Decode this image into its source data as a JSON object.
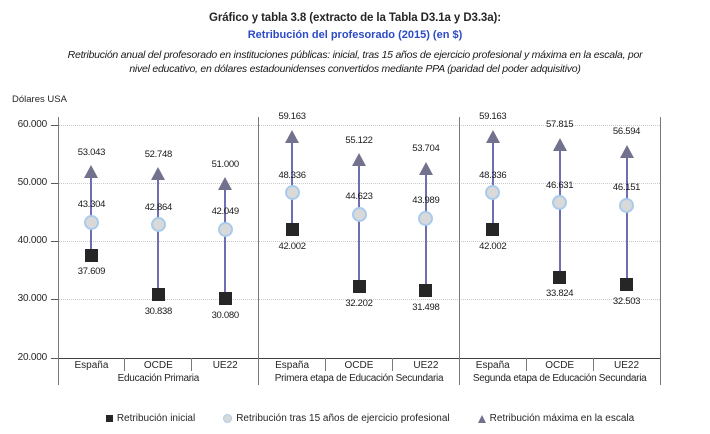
{
  "header": {
    "title_line1": "Gráfico y tabla 3.8 (extracto de la Tabla D3.1a y D3.3a):",
    "title_line2": "Retribución del profesorado (2015) (en $)",
    "title_line2_color": "#2b4ac6",
    "subtitle_line1": "Retribución anual del profesorado en instituciones públicas: inicial, tras 15 años de ejercicio profesional y máxima en la escala, por",
    "subtitle_line2": "nivel educativo, en dólares estadounidenses convertidos mediante PPA (paridad del poder adquisitivo)"
  },
  "chart_data": {
    "type": "scatter",
    "variant": "range-dot-arrow",
    "title": "Retribución del profesorado (2015) (en $)",
    "ylabel": "Dólares USA",
    "xlabel": "",
    "ylim": [
      20000,
      60000
    ],
    "grid": "horizontal-dotted",
    "legend_position": "bottom",
    "yticks": [
      {
        "value": 60000,
        "label": "60.000"
      },
      {
        "value": 50000,
        "label": "50.000"
      },
      {
        "value": 40000,
        "label": "40.000"
      },
      {
        "value": 30000,
        "label": "30.000"
      },
      {
        "value": 20000,
        "label": "20.000"
      }
    ],
    "series_meta": [
      {
        "key": "inicial",
        "name": "Retribución inicial",
        "marker": "square",
        "color": "#262626"
      },
      {
        "key": "tras15",
        "name": "Retribución tras 15 años de ejercicio profesional",
        "marker": "circle",
        "fill": "#d9d9d9",
        "border": "#a9cbec"
      },
      {
        "key": "maxima",
        "name": "Retribución máxima en la escala",
        "marker": "arrow",
        "color": "#72728e",
        "stem_color": "#6e6eb0"
      }
    ],
    "groups": [
      {
        "label": "Educación Primaria",
        "columns": [
          {
            "category": "España",
            "inicial": 37609,
            "inicial_label": "37.609",
            "tras15": 43304,
            "tras15_label": "43.304",
            "maxima": 53043,
            "maxima_label": "53.043"
          },
          {
            "category": "OCDE",
            "inicial": 30838,
            "inicial_label": "30.838",
            "tras15": 42864,
            "tras15_label": "42.864",
            "maxima": 52748,
            "maxima_label": "52.748"
          },
          {
            "category": "UE22",
            "inicial": 30080,
            "inicial_label": "30.080",
            "tras15": 42049,
            "tras15_label": "42.049",
            "maxima": 51000,
            "maxima_label": "51.000"
          }
        ]
      },
      {
        "label": "Primera etapa de Educación Secundaria",
        "columns": [
          {
            "category": "España",
            "inicial": 42002,
            "inicial_label": "42.002",
            "tras15": 48336,
            "tras15_label": "48.336",
            "maxima": 59163,
            "maxima_label": "59.163"
          },
          {
            "category": "OCDE",
            "inicial": 32202,
            "inicial_label": "32.202",
            "tras15": 44623,
            "tras15_label": "44.623",
            "maxima": 55122,
            "maxima_label": "55.122"
          },
          {
            "category": "UE22",
            "inicial": 31498,
            "inicial_label": "31.498",
            "tras15": 43989,
            "tras15_label": "43.989",
            "maxima": 53704,
            "maxima_label": "53.704"
          }
        ]
      },
      {
        "label": "Segunda etapa de Educación Secundaria",
        "columns": [
          {
            "category": "España",
            "inicial": 42002,
            "inicial_label": "42.002",
            "tras15": 48336,
            "tras15_label": "48.336",
            "maxima": 59163,
            "maxima_label": "59.163"
          },
          {
            "category": "OCDE",
            "inicial": 33824,
            "inicial_label": "33.824",
            "tras15": 46631,
            "tras15_label": "46.631",
            "maxima": 57815,
            "maxima_label": "57.815"
          },
          {
            "category": "UE22",
            "inicial": 32503,
            "inicial_label": "32.503",
            "tras15": 46151,
            "tras15_label": "46.151",
            "maxima": 56594,
            "maxima_label": "56.594"
          }
        ]
      }
    ]
  }
}
